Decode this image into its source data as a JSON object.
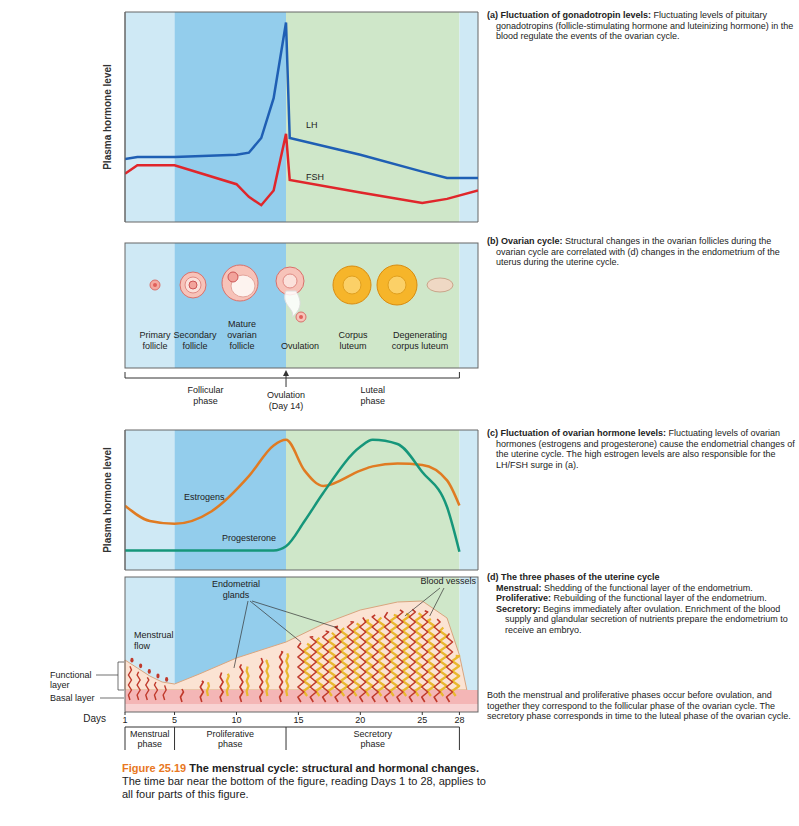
{
  "chart_data": [
    {
      "type": "line",
      "y_label": "Plasma hormone level",
      "xlim": [
        1,
        29.5
      ],
      "ylim": [
        0,
        100
      ],
      "yticks": [],
      "tick_labels": false,
      "x": [
        1,
        2,
        5,
        10,
        11,
        12,
        13,
        14,
        14.3,
        20,
        25,
        27,
        29.5
      ],
      "series": [
        {
          "name": "LH",
          "color": "#1f5fb4",
          "values": [
            30,
            31,
            31,
            32,
            33,
            40,
            59,
            95,
            40,
            32,
            24,
            21,
            21
          ]
        },
        {
          "name": "FSH",
          "color": "#e0262b",
          "values": [
            23,
            27,
            27,
            18,
            12,
            8,
            15,
            42,
            20,
            14,
            9,
            11,
            15
          ]
        }
      ]
    },
    {
      "type": "line",
      "y_label": "Plasma hormone level",
      "xlim": [
        1,
        29.5
      ],
      "ylim": [
        0,
        100
      ],
      "yticks": [],
      "tick_labels": false,
      "x": [
        1,
        3,
        5,
        8,
        11,
        13,
        14,
        15.5,
        17,
        20,
        21,
        23,
        25,
        27,
        28
      ],
      "series": [
        {
          "name": "Estrogens",
          "color": "#e07b22",
          "values": [
            46,
            35,
            33,
            42,
            67,
            89,
            93,
            71,
            60,
            71,
            74,
            76,
            75,
            64,
            46
          ]
        },
        {
          "name": "Progesterone",
          "color": "#16967a",
          "values": [
            14,
            14,
            14,
            14,
            14,
            14,
            17,
            35,
            55,
            88,
            93,
            90,
            70,
            45,
            13
          ]
        }
      ]
    }
  ],
  "time_bar": {
    "label": "Days",
    "xticks": [
      1,
      5,
      10,
      15,
      20,
      25,
      28
    ],
    "phases": [
      {
        "label": [
          "Menstrual",
          "phase"
        ],
        "start": 1,
        "end": 5,
        "color": "#cfe9f5"
      },
      {
        "label": [
          "Proliferative",
          "phase"
        ],
        "start": 5,
        "end": 14,
        "color": "#93cdec"
      },
      {
        "label": [
          "Secretory",
          "phase"
        ],
        "start": 14,
        "end": 28,
        "color": "#cfe7c9"
      }
    ]
  },
  "ovarian_cycle": {
    "stages": [
      [
        "Primary",
        "follicle"
      ],
      [
        "Secondary",
        "follicle"
      ],
      [
        "Mature",
        "ovarian",
        "follicle"
      ],
      [
        "Ovulation"
      ],
      [
        "Corpus",
        "luteum"
      ],
      [
        "Degenerating",
        "corpus luteum"
      ]
    ],
    "phases": [
      {
        "label": [
          "Follicular",
          "phase"
        ],
        "start": 1,
        "end": 14
      },
      {
        "label": [
          "Luteal",
          "phase"
        ],
        "start": 14,
        "end": 28
      }
    ],
    "ovulation": {
      "label": [
        "Ovulation",
        "(Day 14)"
      ],
      "day": 14
    }
  },
  "uterine_cycle": {
    "glands": [
      "Endometrial",
      "glands"
    ],
    "vessels": [
      "Blood vessels"
    ],
    "flow": [
      "Menstrual",
      "flow"
    ],
    "functional": [
      "Functional",
      "layer"
    ],
    "basal": [
      "Basal layer"
    ]
  },
  "captions": [
    {
      "heading": "(a) Fluctuation of gonadotropin levels:",
      "text": "Fluctuating levels of pituitary gonadotropins (follicle-stimulating hormone and luteinizing hormone) in the blood regulate the events of the ovarian cycle."
    },
    {
      "heading": "(b) Ovarian cycle:",
      "text": "Structural changes in the ovarian follicles during the ovarian cycle are correlated with (d) changes in the endometrium of the uterus during the uterine cycle."
    },
    {
      "heading": "(c) Fluctuation of ovarian hormone levels:",
      "text": "Fluctuating levels of ovarian hormones (estrogens and progesterone) cause the endometrial changes of the uterine cycle. The high estrogen levels are also responsible for the LH/FSH surge in (a)."
    }
  ],
  "uterine_caption": {
    "heading": "(d) The three phases of the uterine cycle",
    "items": [
      {
        "term": "Menstrual:",
        "text": "Shedding of the functional layer of the endometrium."
      },
      {
        "term": "Proliferative:",
        "text": "Rebuilding of the functional layer of the endometrium."
      },
      {
        "term": "Secretory:",
        "text": "Begins immediately after ovulation. Enrichment of the blood supply and glandular secretion of nutrients prepare the endometrium to receive an embryo."
      }
    ],
    "note": "Both the menstrual and proliferative phases occur before ovulation, and together they correspond to the follicular phase of the ovarian cycle. The secretory phase corresponds in time to the luteal phase of the ovarian cycle."
  },
  "figure_caption": {
    "number": "Figure 25.19",
    "title": "The menstrual cycle: structural and hormonal changes.",
    "text": "The time bar near the bottom of the figure, reading Days 1 to 28, applies to all four parts of this figure."
  }
}
